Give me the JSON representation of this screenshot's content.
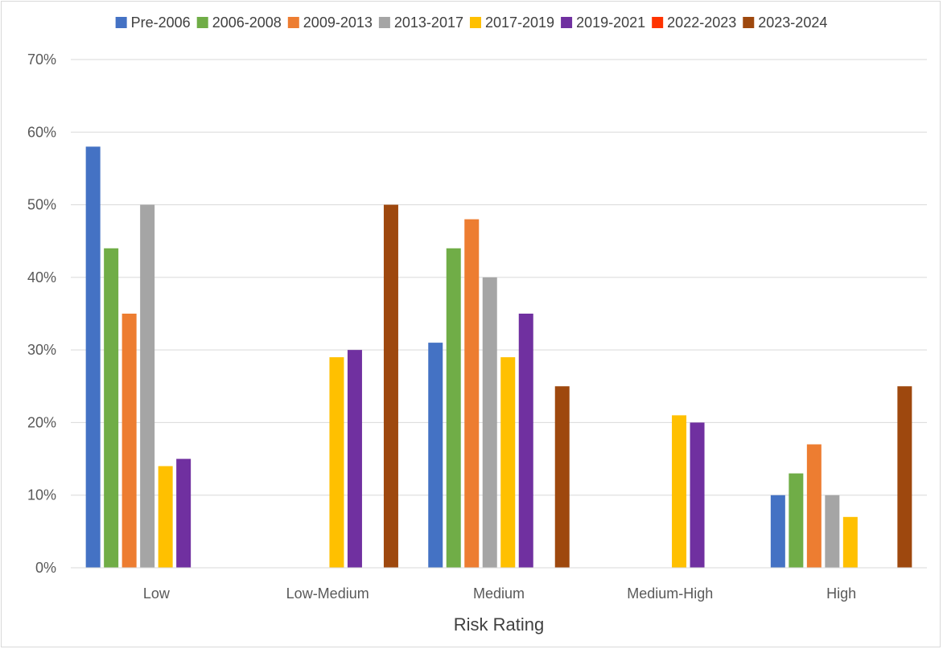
{
  "chart_data": {
    "type": "bar",
    "title": "",
    "xlabel": "Risk Rating",
    "ylabel": "",
    "ylim": [
      0,
      70
    ],
    "ytick_step": 10,
    "ytick_suffix": "%",
    "grid": true,
    "legend_position": "top",
    "categories": [
      "Low",
      "Low-Medium",
      "Medium",
      "Medium-High",
      "High"
    ],
    "series": [
      {
        "name": "Pre-2006",
        "color": "#4472c4",
        "values": [
          58,
          0,
          31,
          0,
          10
        ]
      },
      {
        "name": "2006-2008",
        "color": "#70ad47",
        "values": [
          44,
          0,
          44,
          0,
          13
        ]
      },
      {
        "name": "2009-2013",
        "color": "#ed7d31",
        "values": [
          35,
          0,
          48,
          0,
          17
        ]
      },
      {
        "name": "2013-2017",
        "color": "#a5a5a5",
        "values": [
          50,
          0,
          40,
          0,
          10
        ]
      },
      {
        "name": "2017-2019",
        "color": "#ffc000",
        "values": [
          14,
          29,
          29,
          21,
          7
        ]
      },
      {
        "name": "2019-2021",
        "color": "#7030a0",
        "values": [
          15,
          30,
          35,
          20,
          0
        ]
      },
      {
        "name": "2022-2023",
        "color": "#ff3300",
        "values": [
          0,
          0,
          0,
          0,
          0
        ]
      },
      {
        "name": "2023-2024",
        "color": "#9e480e",
        "values": [
          0,
          50,
          25,
          0,
          25
        ]
      }
    ]
  }
}
